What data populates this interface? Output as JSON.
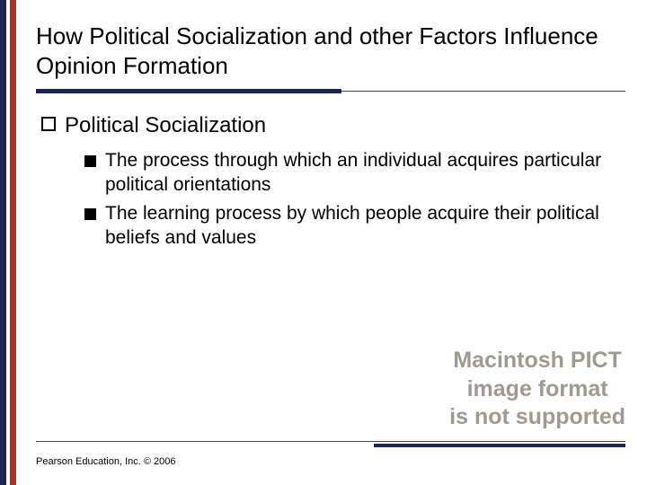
{
  "title": "How Political Socialization and other Factors Influence Opinion Formation",
  "level1": {
    "text": "Political Socialization"
  },
  "level2": [
    {
      "text": "The process through which an individual acquires particular political orientations"
    },
    {
      "text": "The learning process by which people acquire their political beliefs and values"
    }
  ],
  "pict": {
    "line1": "Macintosh PICT",
    "line2": "image format",
    "line3": "is not supported"
  },
  "footer": "Pearson Education, Inc. © 2006",
  "colors": {
    "navy": "#1a2550",
    "red": "#a83228",
    "pict_gray": "#9e9993"
  }
}
